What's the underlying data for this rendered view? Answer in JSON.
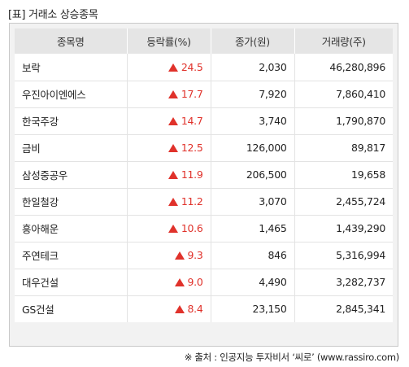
{
  "title": "[표] 거래소 상승종목",
  "table": {
    "headers": {
      "name": "종목명",
      "rate": "등락률(%)",
      "price": "종가(원)",
      "volume": "거래량(주)"
    },
    "rows": [
      {
        "name": "보락",
        "rate": "24.5",
        "price": "2,030",
        "volume": "46,280,896"
      },
      {
        "name": "우진아이엔에스",
        "rate": "17.7",
        "price": "7,920",
        "volume": "7,860,410"
      },
      {
        "name": "한국주강",
        "rate": "14.7",
        "price": "3,740",
        "volume": "1,790,870"
      },
      {
        "name": "금비",
        "rate": "12.5",
        "price": "126,000",
        "volume": "89,817"
      },
      {
        "name": "삼성중공우",
        "rate": "11.9",
        "price": "206,500",
        "volume": "19,658"
      },
      {
        "name": "한일철강",
        "rate": "11.2",
        "price": "3,070",
        "volume": "2,455,724"
      },
      {
        "name": "흥아해운",
        "rate": "10.6",
        "price": "1,465",
        "volume": "1,439,290"
      },
      {
        "name": "주연테크",
        "rate": "9.3",
        "price": "846",
        "volume": "5,316,994"
      },
      {
        "name": "대우건설",
        "rate": "9.0",
        "price": "4,490",
        "volume": "3,282,737"
      },
      {
        "name": "GS건설",
        "rate": "8.4",
        "price": "23,150",
        "volume": "2,845,341"
      }
    ]
  },
  "up_arrow_color": "#e0322b",
  "source": "※ 출처 : 인공지능 투자비서 ‘씨로’ (www.rassiro.com)"
}
